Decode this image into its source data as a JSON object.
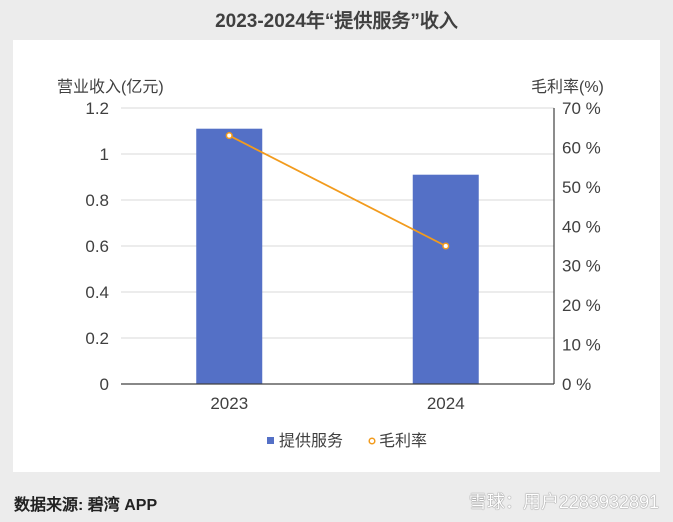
{
  "chart_data": {
    "type": "bar+line",
    "title": "2023-2024年“提供服务”收入",
    "categories": [
      "2023",
      "2024"
    ],
    "series": [
      {
        "name": "提供服务",
        "type": "bar",
        "axis": "left",
        "values": [
          1.11,
          0.91
        ],
        "color": "#5470c6"
      },
      {
        "name": "毛利率",
        "type": "line",
        "axis": "right",
        "values": [
          63,
          35
        ],
        "color": "#f29b1d"
      }
    ],
    "y_left": {
      "label": "营业收入(亿元)",
      "ticks": [
        "0",
        "0.2",
        "0.4",
        "0.6",
        "0.8",
        "1",
        "1.2"
      ],
      "range": [
        0,
        1.2
      ]
    },
    "y_right": {
      "label": "毛利率(%)",
      "ticks": [
        "0 %",
        "10 %",
        "20 %",
        "30 %",
        "40 %",
        "50 %",
        "60 %",
        "70 %"
      ],
      "range": [
        0,
        70
      ]
    },
    "grid": true,
    "legend_position": "bottom"
  },
  "footer": {
    "source": "数据来源: 碧湾 APP",
    "watermark": "雪球：用户2283932891"
  }
}
